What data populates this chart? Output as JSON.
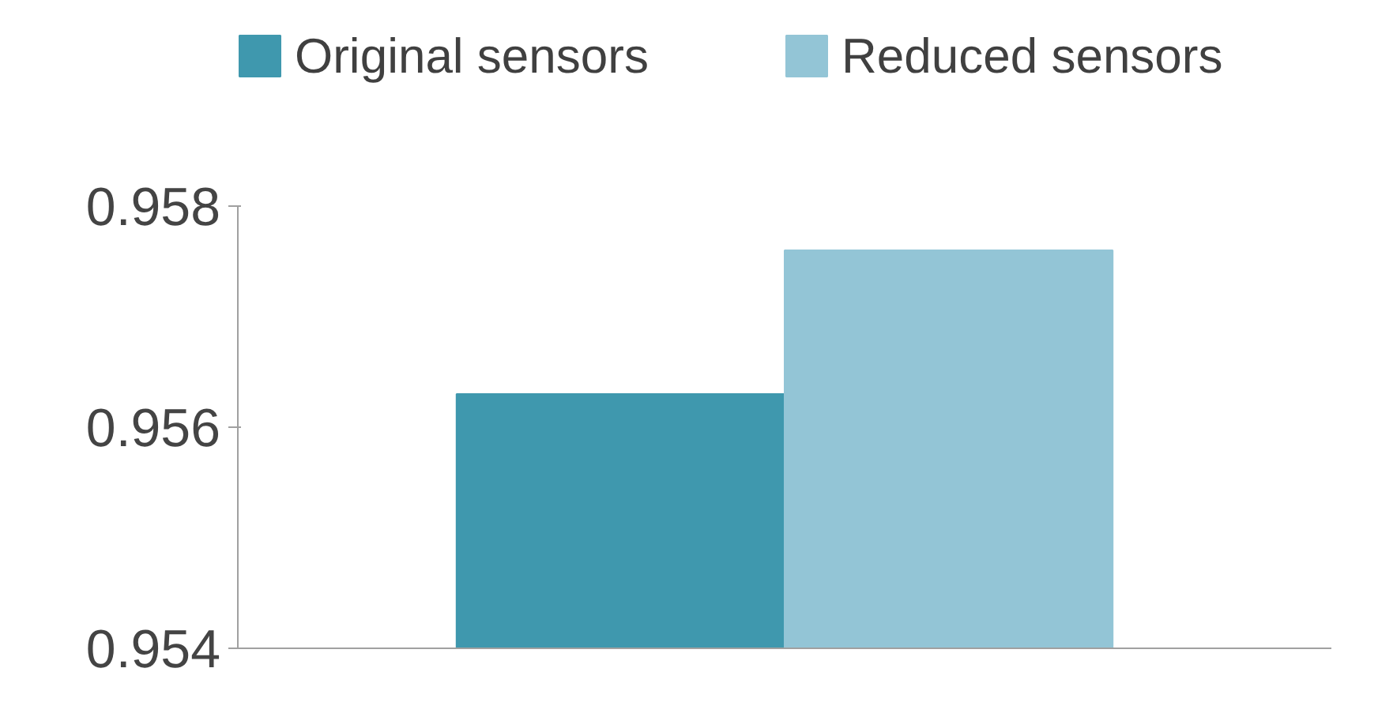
{
  "chart_data": {
    "type": "bar",
    "categories": [
      null
    ],
    "series": [
      {
        "name": "Original sensors",
        "color": "#3f98ae",
        "values": [
          0.9563
        ]
      },
      {
        "name": "Reduced sensors",
        "color": "#93c5d6",
        "values": [
          0.9576
        ]
      }
    ],
    "ylim": [
      0.954,
      0.958
    ],
    "yticks": [
      0.954,
      0.956,
      0.958
    ],
    "grid": false,
    "legend": "top"
  }
}
